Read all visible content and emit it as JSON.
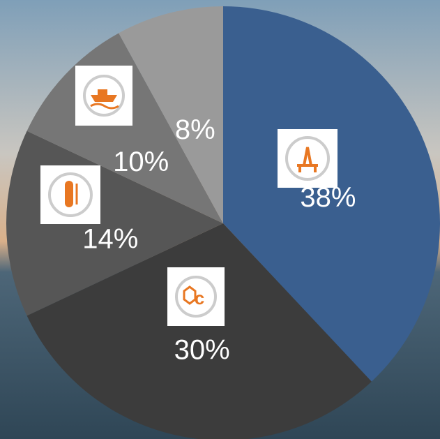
{
  "chart_data": {
    "type": "pie",
    "values": [
      38,
      30,
      14,
      10,
      8
    ],
    "value_labels": [
      "38%",
      "30%",
      "14%",
      "10%",
      "8%"
    ],
    "colors": [
      "#3a5f8f",
      "#3c3c3c",
      "#565656",
      "#767676",
      "#9a9a9a"
    ]
  }
}
